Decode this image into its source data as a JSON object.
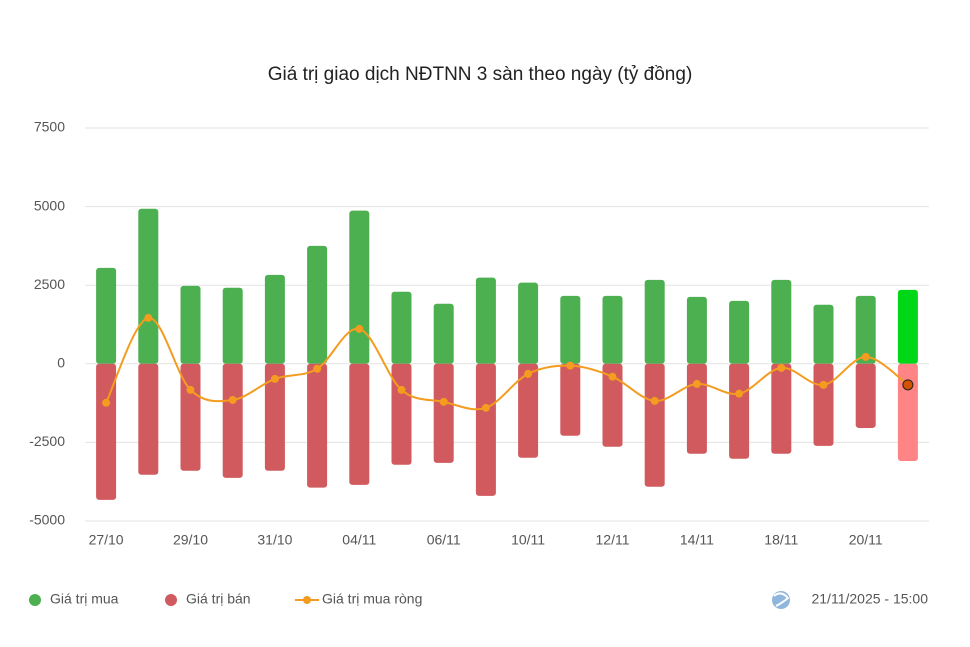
{
  "chart_data": {
    "type": "bar-line",
    "title": "Giá trị giao dịch NĐTNN 3 sàn theo ngày (tỷ đồng)",
    "categories": [
      "27/10",
      null,
      "29/10",
      null,
      "31/10",
      null,
      "04/11",
      null,
      "06/11",
      null,
      "10/11",
      null,
      "12/11",
      null,
      "14/11",
      null,
      "18/11",
      null,
      "20/11",
      null
    ],
    "series": [
      {
        "name": "Giá trị mua",
        "type": "bar",
        "color": "#4caf50",
        "last_color": "#00d817",
        "values": [
          3050,
          4930,
          2480,
          2420,
          2830,
          3750,
          4870,
          2290,
          1910,
          2740,
          2580,
          2160,
          2160,
          2670,
          2130,
          2000,
          2670,
          1880,
          2160,
          2350
        ]
      },
      {
        "name": "Giá trị bán",
        "type": "bar",
        "color": "#d05a5d",
        "last_color": "#ff8486",
        "values": [
          -4330,
          -3530,
          -3400,
          -3630,
          -3400,
          -3940,
          -3850,
          -3210,
          -3150,
          -4200,
          -2990,
          -2290,
          -2640,
          -3910,
          -2860,
          -3020,
          -2860,
          -2610,
          -2040,
          -3090
        ]
      },
      {
        "name": "Giá trị mua ròng",
        "type": "line",
        "color": "#f39c1f",
        "last_color": "#d35400",
        "values": [
          -1240,
          1460,
          -830,
          -1150,
          -480,
          -160,
          1110,
          -830,
          -1210,
          -1400,
          -320,
          -60,
          -410,
          -1180,
          -640,
          -950,
          -130,
          -670,
          220,
          -670
        ]
      }
    ],
    "ylim": [
      -5000,
      7500
    ],
    "yticks": [
      -5000,
      -2500,
      0,
      2500,
      5000,
      7500
    ],
    "grid": true,
    "legend": "bottom-left",
    "timestamp": "21/11/2025 - 15:00"
  }
}
